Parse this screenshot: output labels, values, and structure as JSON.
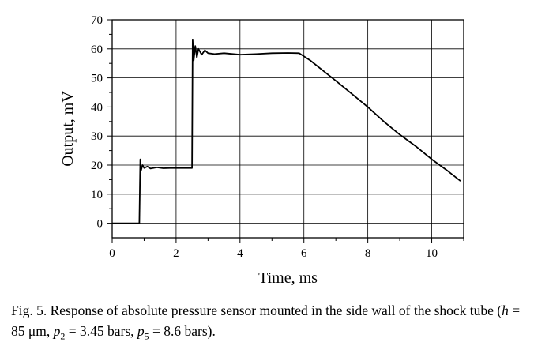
{
  "chart_data": {
    "type": "line",
    "title": "",
    "xlabel": "Time, ms",
    "ylabel": "Output, mV",
    "xlim": [
      0,
      11
    ],
    "ylim": [
      -5,
      70
    ],
    "xticks": [
      0,
      2,
      4,
      6,
      8,
      10
    ],
    "yticks": [
      0,
      10,
      20,
      30,
      40,
      50,
      60,
      70
    ],
    "grid": true,
    "legend": "none",
    "line_color": "#000000",
    "series": [
      {
        "name": "",
        "x": [
          0,
          0.85,
          0.88,
          0.9,
          0.95,
          1.0,
          1.1,
          1.2,
          1.4,
          1.6,
          1.8,
          2.0,
          2.2,
          2.5,
          2.52,
          2.55,
          2.6,
          2.65,
          2.7,
          2.8,
          2.9,
          3.0,
          3.2,
          3.5,
          4.0,
          4.5,
          5.0,
          5.5,
          5.85,
          6.2,
          6.6,
          7.0,
          7.5,
          8.0,
          8.5,
          9.0,
          9.5,
          10.0,
          10.5,
          10.9
        ],
        "y": [
          0,
          0,
          22,
          18,
          20,
          19,
          19.5,
          18.8,
          19.2,
          18.9,
          19,
          19,
          19,
          19,
          63,
          56,
          61,
          57,
          60,
          58,
          59.5,
          58.5,
          58.2,
          58.5,
          58,
          58.2,
          58.5,
          58.6,
          58.5,
          56,
          52.5,
          49,
          44.5,
          40,
          35,
          30.5,
          26.5,
          22,
          18,
          14.5
        ]
      }
    ]
  },
  "caption": {
    "lead": "Fig. 5. Response of absolute pressure sensor mounted in the side wall of the shock tube (",
    "h_var": "h",
    "h_val": " = 85 μm, ",
    "p2_var": "p",
    "p2_sub": "2",
    "p2_val": " = 3.45 bars, ",
    "p5_var": "p",
    "p5_sub": "5",
    "p5_val": " = 8.6 bars)."
  }
}
